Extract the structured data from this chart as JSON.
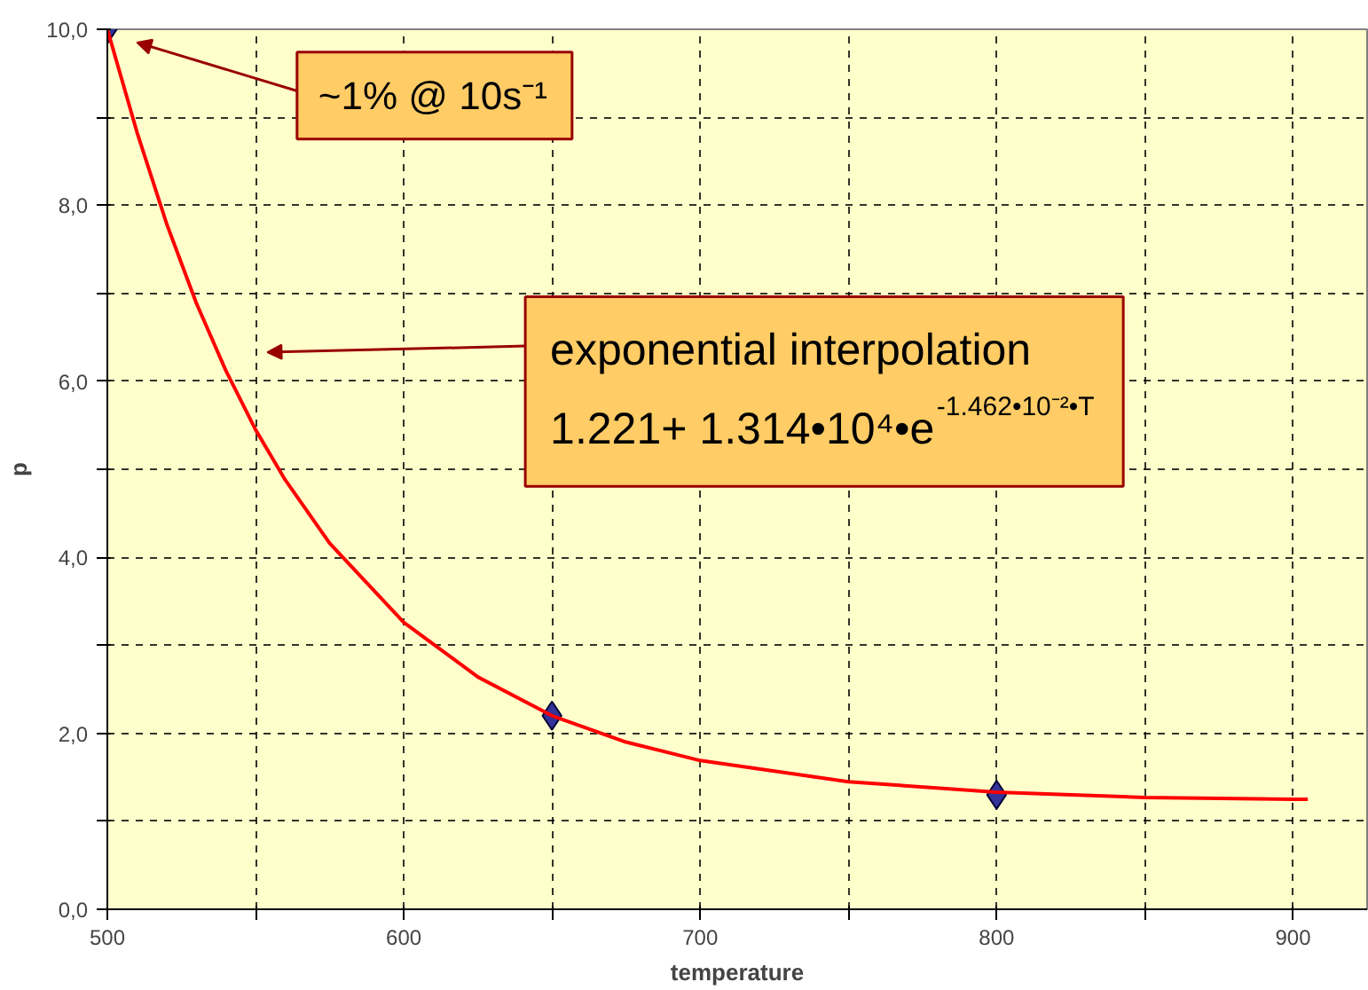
{
  "chart_data": {
    "type": "scatter",
    "xlabel": "temperature",
    "ylabel": "p",
    "x": [
      500,
      650,
      800
    ],
    "series": [
      {
        "color": "#333399",
        "marker": "diamond",
        "values": [
          10.0,
          2.2,
          1.3
        ]
      },
      {
        "type": "line",
        "color": "#ff0000",
        "line_style": "solid",
        "marker": "none",
        "x": [
          500,
          510,
          520,
          530,
          540,
          550,
          560,
          575,
          600,
          625,
          650,
          675,
          700,
          750,
          800,
          850,
          900,
          905
        ],
        "values": [
          10.0,
          8.83,
          7.79,
          6.89,
          6.12,
          5.45,
          4.88,
          4.16,
          3.26,
          2.64,
          2.2,
          1.9,
          1.69,
          1.45,
          1.33,
          1.27,
          1.25,
          1.25
        ]
      }
    ],
    "xlim": [
      500,
      925
    ],
    "ylim": [
      0,
      10
    ],
    "xticks": [
      500,
      {
        "value": 550,
        "label": null
      },
      600,
      {
        "value": 650,
        "label": null
      },
      700,
      {
        "value": 750,
        "label": null
      },
      800,
      {
        "value": 850,
        "label": null
      },
      900
    ],
    "yticks": [
      {
        "value": 0,
        "label": "0,0"
      },
      {
        "value": 1,
        "label": null
      },
      {
        "value": 2,
        "label": "2,0"
      },
      {
        "value": 3,
        "label": null
      },
      {
        "value": 4,
        "label": "4,0"
      },
      {
        "value": 5,
        "label": null
      },
      {
        "value": 6,
        "label": "6,0"
      },
      {
        "value": 7,
        "label": null
      },
      {
        "value": 8,
        "label": "8,0"
      },
      {
        "value": 9,
        "label": null
      },
      {
        "value": 10,
        "label": "10,0"
      }
    ],
    "grid": true,
    "annotations": [
      "~1% @ 10s⁻¹",
      "exponential interpolation\n1.221+ 1.314•10⁴•e$^{-1.462•10⁻²•T}$"
    ]
  }
}
